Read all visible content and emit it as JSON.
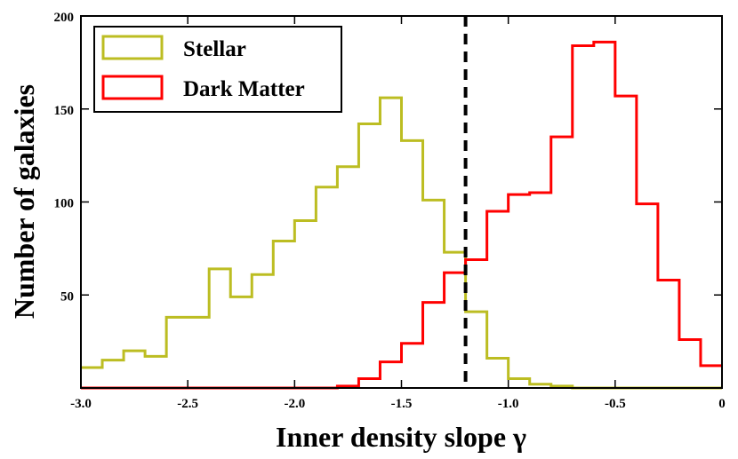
{
  "chart_data": {
    "type": "histogram",
    "xlabel": "Inner density slope γ",
    "ylabel": "Number of galaxies",
    "xlim": [
      -3.0,
      0.0
    ],
    "ylim": [
      0,
      200
    ],
    "xticks": [
      -3.0,
      -2.5,
      -2.0,
      -1.5,
      -1.0,
      -0.5,
      0
    ],
    "xtick_labels": [
      "-3.0",
      "-2.5",
      "-2.0",
      "-1.5",
      "-1.0",
      "-0.5",
      "0"
    ],
    "yticks": [
      50,
      100,
      150,
      200
    ],
    "ytick_labels": [
      "50",
      "100",
      "150",
      "200"
    ],
    "bin_edges": [
      -3.0,
      -2.9,
      -2.8,
      -2.7,
      -2.6,
      -2.5,
      -2.4,
      -2.3,
      -2.2,
      -2.1,
      -2.0,
      -1.9,
      -1.8,
      -1.7,
      -1.6,
      -1.5,
      -1.4,
      -1.3,
      -1.2,
      -1.1,
      -1.0,
      -0.9,
      -0.8,
      -0.7,
      -0.6,
      -0.5,
      -0.4,
      -0.3,
      -0.2,
      -0.1,
      0.0
    ],
    "vline": {
      "x": -1.2,
      "style": "dashed",
      "color": "#000000"
    },
    "legend_position": "top-left",
    "series": [
      {
        "name": "Stellar",
        "color": "#bcbd22",
        "values": [
          11,
          15,
          20,
          17,
          38,
          38,
          64,
          49,
          61,
          79,
          90,
          108,
          119,
          142,
          156,
          133,
          101,
          73,
          41,
          16,
          5,
          2,
          1,
          0,
          0,
          0,
          0,
          0,
          0,
          0
        ]
      },
      {
        "name": "Dark Matter",
        "color": "#ff0000",
        "values": [
          0,
          0,
          0,
          0,
          0,
          0,
          0,
          0,
          0,
          0,
          0,
          0,
          1,
          5,
          14,
          24,
          46,
          62,
          69,
          95,
          104,
          105,
          135,
          184,
          186,
          157,
          99,
          58,
          26,
          12
        ]
      }
    ]
  }
}
